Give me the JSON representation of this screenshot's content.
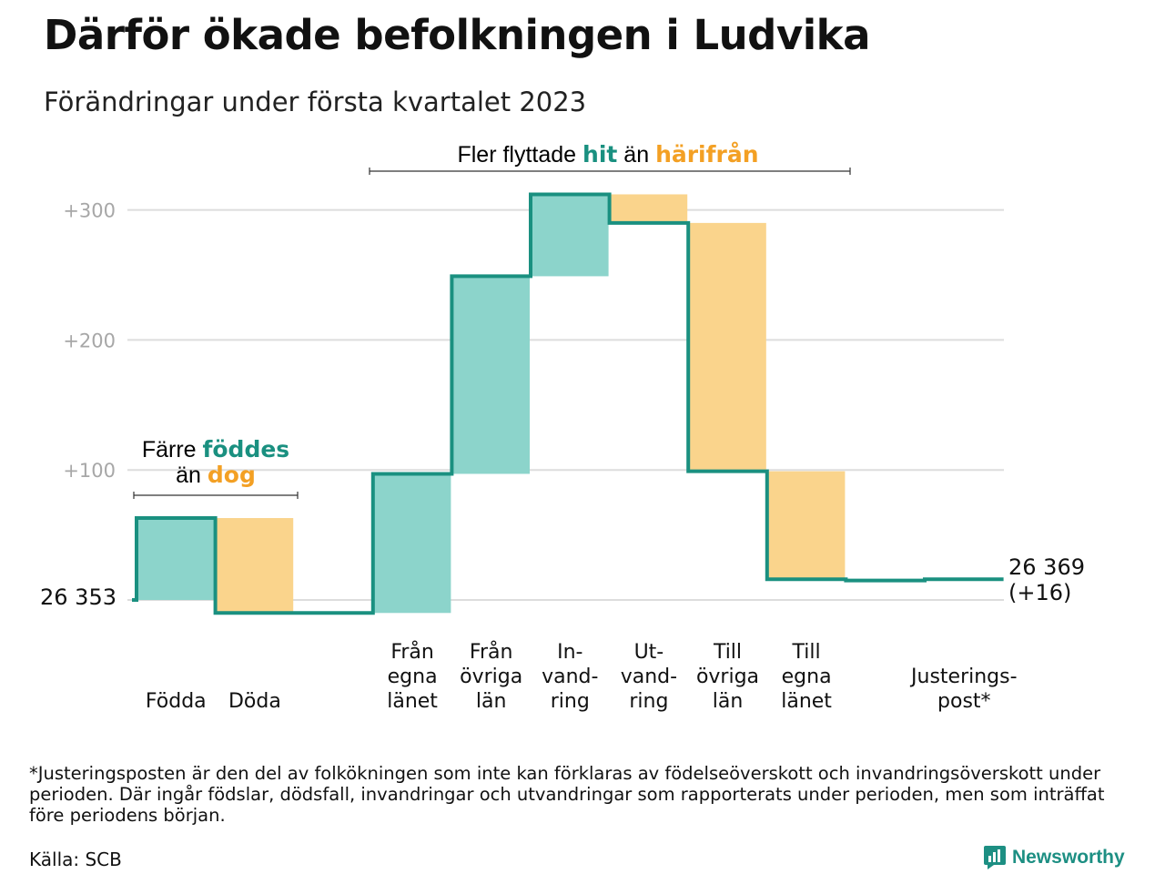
{
  "title": "Därför ökade befolkningen i Ludvika",
  "subtitle": "Förändringar under första kvartalet 2023",
  "colors": {
    "increase": "#8cd4cb",
    "decrease": "#fad48c",
    "line": "#1a9080",
    "accent_teal": "#1a9080",
    "accent_orange": "#f3a024",
    "grid": "#dddddd",
    "tick": "#a7a7a7"
  },
  "annotations": {
    "migration": {
      "pre": "Fler flyttade ",
      "hit": "hit",
      "mid": " än ",
      "harifran": "härifrån"
    },
    "births": {
      "line1_pre": "Färre ",
      "line1_accent": "föddes",
      "line2_pre": "än ",
      "line2_accent": "dog"
    }
  },
  "labels": {
    "start": "26 353",
    "end_line1": "26 369",
    "end_line2": "(+16)"
  },
  "chart_data": {
    "type": "waterfall",
    "start_value": 26353,
    "end_value": 26369,
    "total_change": 16,
    "y_ticks": [
      "+100",
      "+200",
      "+300"
    ],
    "y_tick_values": [
      100,
      200,
      300
    ],
    "ylim": [
      -20,
      315
    ],
    "grid": true,
    "steps": [
      {
        "category": [
          "Födda"
        ],
        "change": 63,
        "type": "increase"
      },
      {
        "category": [
          "Döda"
        ],
        "change": -73,
        "type": "decrease"
      },
      {
        "category": [],
        "change": 0,
        "type": "gap"
      },
      {
        "category": [
          "Från",
          "egna",
          "länet"
        ],
        "change": 107,
        "type": "increase"
      },
      {
        "category": [
          "Från",
          "övriga",
          "län"
        ],
        "change": 152,
        "type": "increase"
      },
      {
        "category": [
          "In-",
          "vand-",
          "ring"
        ],
        "change": 63,
        "type": "increase"
      },
      {
        "category": [
          "Ut-",
          "vand-",
          "ring"
        ],
        "change": -22,
        "type": "decrease"
      },
      {
        "category": [
          "Till",
          "övriga",
          "län"
        ],
        "change": -191,
        "type": "decrease"
      },
      {
        "category": [
          "Till",
          "egna",
          "länet"
        ],
        "change": -83,
        "type": "decrease"
      },
      {
        "category": [],
        "change": -1,
        "type": "gap"
      },
      {
        "category": [
          "Justerings-",
          "post*"
        ],
        "change": 1,
        "type": "adjustment"
      }
    ]
  },
  "footnote": "*Justeringsposten är den del av folkökningen som inte kan förklaras av födelseöverskott och invandringsöverskott under perioden. Där ingår födslar, dödsfall, invandringar och utvandringar som rapporterats under perioden, men som inträffat före periodens början.",
  "source": "Källa: SCB",
  "brand": {
    "name": "Newsworthy",
    "icon": "newsworthy-logo-icon"
  }
}
